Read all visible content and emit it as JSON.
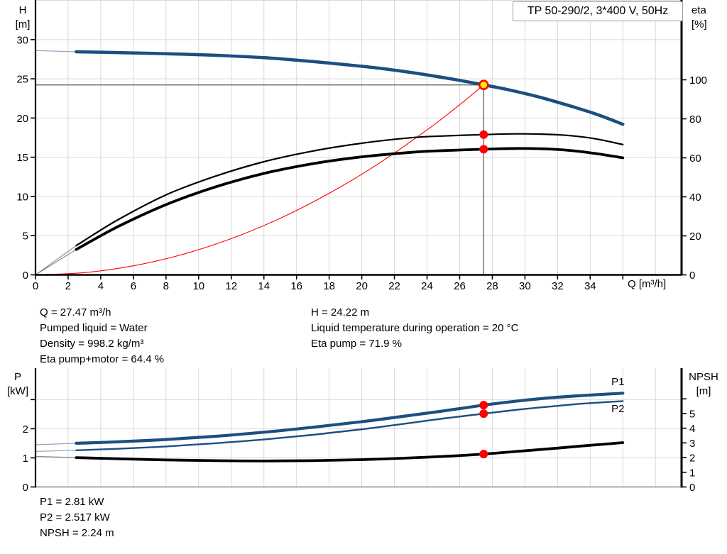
{
  "title_box": {
    "label": "TP 50-290/2, 3*400 V, 50Hz"
  },
  "colors": {
    "blue": "#1c4f80",
    "blue_thin": "#8fa6bf",
    "black": "#000000",
    "black_thin": "#8c8c8c",
    "red": "#ff0000",
    "grid": "#d9d9d9",
    "crosshair": "#5a5a5a",
    "axis": "#000000",
    "bottom_axis": "#6e6e6e",
    "marker_fill": "#ffed00",
    "marker_ring": "#ff0000",
    "dot": "#ff0000",
    "title_border": "#9c9c9c"
  },
  "labels": {
    "h": "H",
    "h_unit": "[m]",
    "eta": "eta",
    "eta_unit": "[%]",
    "q": "Q [m³/h]",
    "p": "P",
    "p_unit": "[kW]",
    "npsh": "NPSH",
    "npsh_unit": "[m]"
  },
  "info": {
    "left": [
      "Q = 27.47 m³/h",
      "Pumped liquid = Water",
      "Density = 998.2 kg/m³",
      "Eta pump+motor = 64.4 %"
    ],
    "right": [
      "H = 24.22 m",
      "Liquid temperature during operation = 20 °C",
      "Eta pump = 71.9 %"
    ],
    "bottom": [
      "P1 = 2.81 kW",
      "P2 = 2.517 kW",
      "NPSH = 2.24 m"
    ]
  },
  "duty_point": {
    "q_m3h": 27.47,
    "h_m": 24.22,
    "eta_pump_pct": 71.9,
    "eta_pump_motor_pct": 64.4,
    "p1_kw": 2.81,
    "p2_kw": 2.517,
    "npsh_m": 2.24
  },
  "chart_data": [
    {
      "type": "line",
      "name": "hq-eta-chart",
      "title": "TP 50-290/2, 3*400 V, 50Hz",
      "x": {
        "label": "Q [m³/h]",
        "min": 0,
        "max": 39.6,
        "tick_labels": [
          0,
          2,
          4,
          6,
          8,
          10,
          12,
          14,
          16,
          18,
          20,
          22,
          24,
          26,
          28,
          30,
          32,
          34
        ],
        "tick_marks": [
          0,
          2,
          4,
          6,
          8,
          10,
          12,
          14,
          16,
          18,
          20,
          22,
          24,
          26,
          28,
          30,
          32,
          34,
          36
        ],
        "grid": [
          2,
          4,
          6,
          8,
          10,
          12,
          14,
          16,
          18,
          20,
          22,
          24,
          26,
          28,
          30,
          32,
          34,
          36,
          38
        ]
      },
      "y_left": {
        "label": "H [m]",
        "min": 0,
        "max": 35.05,
        "tick_labels": [
          0,
          5,
          10,
          15,
          20,
          25,
          30
        ],
        "tick_marks": [
          0,
          5,
          10,
          15,
          20,
          25,
          30
        ],
        "grid": [
          5,
          10,
          15,
          20,
          25,
          30,
          35
        ]
      },
      "y_right": {
        "label": "eta [%]",
        "min": 0,
        "max": 140.9,
        "tick_labels": [
          0,
          20,
          40,
          60,
          80,
          100
        ],
        "tick_marks": [
          0,
          20,
          40,
          60,
          80,
          100
        ]
      },
      "x_axis_style": "strong",
      "series": [
        {
          "name": "system-curve",
          "axis": "left",
          "color_key": "red",
          "width": 1.1,
          "points": [
            [
              0,
              0
            ],
            [
              3,
              0.29
            ],
            [
              6,
              1.16
            ],
            [
              9,
              2.6
            ],
            [
              12,
              4.62
            ],
            [
              15,
              7.22
            ],
            [
              18,
              10.4
            ],
            [
              21,
              14.15
            ],
            [
              24,
              18.49
            ],
            [
              26,
              21.7
            ],
            [
              27.47,
              24.22
            ]
          ]
        },
        {
          "name": "eta-pump-curve",
          "axis": "right",
          "color_key": "black",
          "thin_color_key": "black_thin",
          "width": 2.2,
          "thin_until": 2.5,
          "points": [
            [
              0,
              0
            ],
            [
              2.5,
              15
            ],
            [
              5,
              28
            ],
            [
              8,
              41
            ],
            [
              11,
              50.5
            ],
            [
              14,
              58
            ],
            [
              17,
              63.5
            ],
            [
              20,
              67.5
            ],
            [
              23,
              70.3
            ],
            [
              25,
              71.2
            ],
            [
              27.47,
              71.9
            ],
            [
              29.5,
              72.3
            ],
            [
              31.5,
              72
            ],
            [
              33,
              71.2
            ],
            [
              34.5,
              69.5
            ],
            [
              36,
              66.8
            ]
          ]
        },
        {
          "name": "eta-pump-motor-curve",
          "axis": "right",
          "color_key": "black",
          "thin_color_key": "black_thin",
          "width": 3.8,
          "thin_until": 2.5,
          "points": [
            [
              0,
              0
            ],
            [
              2.5,
              13
            ],
            [
              5,
              24.5
            ],
            [
              8,
              36
            ],
            [
              11,
              45
            ],
            [
              14,
              52
            ],
            [
              17,
              57
            ],
            [
              20,
              60.5
            ],
            [
              23,
              62.8
            ],
            [
              25,
              63.7
            ],
            [
              27.47,
              64.4
            ],
            [
              29.5,
              64.8
            ],
            [
              31.5,
              64.5
            ],
            [
              33,
              63.6
            ],
            [
              34.5,
              62
            ],
            [
              36,
              60
            ]
          ]
        },
        {
          "name": "head-curve",
          "axis": "left",
          "color_key": "blue",
          "thin_color_key": "blue_thin",
          "width": 4.5,
          "thin_until": 2.5,
          "points": [
            [
              0,
              28.6
            ],
            [
              2.5,
              28.45
            ],
            [
              5,
              28.35
            ],
            [
              8,
              28.2
            ],
            [
              11,
              28.0
            ],
            [
              14,
              27.7
            ],
            [
              17,
              27.2
            ],
            [
              20,
              26.6
            ],
            [
              22,
              26.1
            ],
            [
              24,
              25.5
            ],
            [
              26,
              24.8
            ],
            [
              27.47,
              24.22
            ],
            [
              29,
              23.6
            ],
            [
              31,
              22.6
            ],
            [
              33,
              21.4
            ],
            [
              34.5,
              20.4
            ],
            [
              36,
              19.2
            ]
          ]
        }
      ],
      "duty_lines": {
        "q": 27.47,
        "v": 24.22,
        "axis": "left"
      },
      "markers": [
        {
          "name": "eta-pump-dot",
          "q": 27.47,
          "v": 71.9,
          "axis": "right",
          "r": 6,
          "fill_key": "dot"
        },
        {
          "name": "eta-pump-motor-dot",
          "q": 27.47,
          "v": 64.4,
          "axis": "right",
          "r": 6,
          "fill_key": "dot"
        },
        {
          "name": "duty-point-marker",
          "q": 27.47,
          "v": 24.22,
          "axis": "left",
          "r": 6,
          "fill_key": "marker_fill",
          "stroke_key": "marker_ring",
          "stroke_width": 2.6
        }
      ],
      "annotations": []
    },
    {
      "type": "line",
      "name": "power-npsh-chart",
      "x": {
        "label": "",
        "min": 0,
        "max": 39.6,
        "tick_labels": [],
        "tick_marks": [],
        "grid": [
          2,
          4,
          6,
          8,
          10,
          12,
          14,
          16,
          18,
          20,
          22,
          24,
          26,
          28,
          30,
          32,
          34,
          36,
          38
        ]
      },
      "y_left": {
        "label": "P [kW]",
        "min": 0,
        "max": 4.08,
        "tick_labels": [
          0,
          1,
          2
        ],
        "tick_marks": [
          0,
          1,
          2,
          3
        ],
        "grid": [
          1,
          2,
          3
        ]
      },
      "y_right": {
        "label": "NPSH [m]",
        "min": 0,
        "max": 8.09,
        "tick_labels": [
          0,
          1,
          2,
          3,
          4,
          5
        ],
        "tick_marks": [
          0,
          1,
          2,
          3,
          4,
          5,
          6
        ]
      },
      "x_axis_style": "light",
      "series": [
        {
          "name": "npsh-curve",
          "axis": "right",
          "color_key": "black",
          "thin_color_key": "black_thin",
          "width": 3.8,
          "thin_until": 2.5,
          "points": [
            [
              0,
              2.08
            ],
            [
              2.5,
              2.0
            ],
            [
              5,
              1.92
            ],
            [
              8,
              1.84
            ],
            [
              11,
              1.79
            ],
            [
              14,
              1.77
            ],
            [
              17,
              1.79
            ],
            [
              20,
              1.86
            ],
            [
              23,
              1.98
            ],
            [
              25,
              2.08
            ],
            [
              27.47,
              2.24
            ],
            [
              29.5,
              2.42
            ],
            [
              31.5,
              2.6
            ],
            [
              33.5,
              2.79
            ],
            [
              36,
              3.02
            ]
          ]
        },
        {
          "name": "p2-curve",
          "axis": "left",
          "color_key": "blue",
          "thin_color_key": "blue_thin",
          "width": 2.4,
          "thin_until": 2.5,
          "points": [
            [
              0,
              1.22
            ],
            [
              2.5,
              1.26
            ],
            [
              5,
              1.31
            ],
            [
              8,
              1.39
            ],
            [
              11,
              1.5
            ],
            [
              14,
              1.63
            ],
            [
              17,
              1.79
            ],
            [
              20,
              1.98
            ],
            [
              23,
              2.2
            ],
            [
              25,
              2.35
            ],
            [
              27.47,
              2.517
            ],
            [
              29.5,
              2.65
            ],
            [
              31.5,
              2.76
            ],
            [
              33.5,
              2.86
            ],
            [
              36,
              2.95
            ]
          ]
        },
        {
          "name": "p1-curve",
          "axis": "left",
          "color_key": "blue",
          "thin_color_key": "blue_thin",
          "width": 4.2,
          "thin_until": 2.5,
          "points": [
            [
              0,
              1.45
            ],
            [
              2.5,
              1.5
            ],
            [
              5,
              1.55
            ],
            [
              8,
              1.63
            ],
            [
              11,
              1.74
            ],
            [
              14,
              1.88
            ],
            [
              17,
              2.05
            ],
            [
              20,
              2.24
            ],
            [
              23,
              2.46
            ],
            [
              25,
              2.61
            ],
            [
              27.47,
              2.81
            ],
            [
              29.5,
              2.95
            ],
            [
              31.5,
              3.06
            ],
            [
              33.5,
              3.14
            ],
            [
              36,
              3.22
            ]
          ]
        }
      ],
      "markers": [
        {
          "name": "p1-dot",
          "q": 27.47,
          "v": 2.81,
          "axis": "left",
          "r": 6,
          "fill_key": "dot"
        },
        {
          "name": "p2-dot",
          "q": 27.47,
          "v": 2.517,
          "axis": "left",
          "r": 6,
          "fill_key": "dot"
        },
        {
          "name": "npsh-dot",
          "q": 27.47,
          "v": 2.24,
          "axis": "right",
          "r": 6,
          "fill_key": "dot"
        }
      ],
      "annotations": [
        {
          "text": "P1",
          "q": 35.3,
          "v": 3.5,
          "axis": "left",
          "color_key": "blue"
        },
        {
          "text": "P2",
          "q": 35.3,
          "v": 2.57,
          "axis": "left",
          "color_key": "blue"
        }
      ]
    }
  ]
}
